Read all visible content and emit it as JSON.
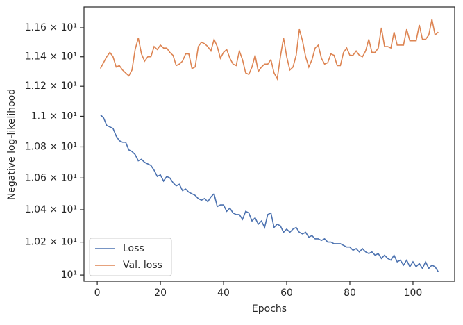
{
  "chart_data": {
    "type": "line",
    "xlabel": "Epochs",
    "ylabel": "Negative log-likelihood",
    "x": [
      1,
      2,
      3,
      4,
      5,
      6,
      7,
      8,
      9,
      10,
      11,
      12,
      13,
      14,
      15,
      16,
      17,
      18,
      19,
      20,
      21,
      22,
      23,
      24,
      25,
      26,
      27,
      28,
      29,
      30,
      31,
      32,
      33,
      34,
      35,
      36,
      37,
      38,
      39,
      40,
      41,
      42,
      43,
      44,
      45,
      46,
      47,
      48,
      49,
      50,
      51,
      52,
      53,
      54,
      55,
      56,
      57,
      58,
      59,
      60,
      61,
      62,
      63,
      64,
      65,
      66,
      67,
      68,
      69,
      70,
      71,
      72,
      73,
      74,
      75,
      76,
      77,
      78,
      79,
      80,
      81,
      82,
      83,
      84,
      85,
      86,
      87,
      88,
      89,
      90,
      91,
      92,
      93,
      94,
      95,
      96,
      97,
      98,
      99,
      100,
      101,
      102,
      103,
      104,
      105,
      106,
      107,
      108
    ],
    "series": [
      {
        "name": "Loss",
        "color": "#4c72b0",
        "values": [
          11.01,
          10.99,
          10.94,
          10.93,
          10.92,
          10.87,
          10.84,
          10.83,
          10.83,
          10.78,
          10.77,
          10.75,
          10.71,
          10.72,
          10.7,
          10.69,
          10.68,
          10.65,
          10.61,
          10.62,
          10.58,
          10.61,
          10.6,
          10.57,
          10.55,
          10.56,
          10.52,
          10.53,
          10.51,
          10.5,
          10.49,
          10.47,
          10.46,
          10.47,
          10.45,
          10.48,
          10.5,
          10.42,
          10.43,
          10.43,
          10.39,
          10.41,
          10.38,
          10.37,
          10.37,
          10.34,
          10.39,
          10.38,
          10.33,
          10.35,
          10.31,
          10.33,
          10.29,
          10.37,
          10.38,
          10.29,
          10.31,
          10.3,
          10.26,
          10.28,
          10.26,
          10.28,
          10.29,
          10.26,
          10.25,
          10.26,
          10.23,
          10.24,
          10.22,
          10.22,
          10.21,
          10.22,
          10.2,
          10.2,
          10.19,
          10.19,
          10.19,
          10.18,
          10.17,
          10.17,
          10.15,
          10.16,
          10.14,
          10.16,
          10.14,
          10.13,
          10.14,
          10.12,
          10.13,
          10.1,
          10.12,
          10.1,
          10.09,
          10.12,
          10.08,
          10.09,
          10.06,
          10.09,
          10.05,
          10.08,
          10.05,
          10.07,
          10.04,
          10.08,
          10.04,
          10.06,
          10.05,
          10.02
        ]
      },
      {
        "name": "Val. loss",
        "color": "#dd8452",
        "values": [
          11.32,
          11.36,
          11.4,
          11.43,
          11.4,
          11.33,
          11.34,
          11.31,
          11.29,
          11.27,
          11.31,
          11.45,
          11.53,
          11.42,
          11.37,
          11.4,
          11.4,
          11.47,
          11.45,
          11.48,
          11.46,
          11.46,
          11.43,
          11.41,
          11.34,
          11.35,
          11.37,
          11.42,
          11.42,
          11.32,
          11.33,
          11.47,
          11.5,
          11.49,
          11.47,
          11.44,
          11.52,
          11.47,
          11.39,
          11.43,
          11.45,
          11.39,
          11.35,
          11.34,
          11.44,
          11.38,
          11.29,
          11.28,
          11.33,
          11.41,
          11.3,
          11.33,
          11.35,
          11.35,
          11.38,
          11.29,
          11.25,
          11.4,
          11.53,
          11.4,
          11.31,
          11.33,
          11.41,
          11.59,
          11.51,
          11.4,
          11.33,
          11.38,
          11.46,
          11.48,
          11.39,
          11.35,
          11.36,
          11.42,
          11.41,
          11.34,
          11.34,
          11.43,
          11.46,
          11.41,
          11.41,
          11.44,
          11.41,
          11.4,
          11.44,
          11.52,
          11.43,
          11.43,
          11.46,
          11.6,
          11.47,
          11.47,
          11.46,
          11.57,
          11.48,
          11.48,
          11.48,
          11.59,
          11.51,
          11.51,
          11.51,
          11.62,
          11.52,
          11.52,
          11.55,
          11.66,
          11.55,
          11.57
        ]
      }
    ],
    "xlim": [
      -4.2,
      113.2
    ],
    "xticks": [
      0,
      20,
      40,
      60,
      80,
      100
    ],
    "ylim": [
      9.963,
      11.746
    ],
    "ylog": true,
    "yticks": [
      {
        "value": 10,
        "label": "10¹"
      },
      {
        "value": 10.2,
        "label": "1.02 × 10¹"
      },
      {
        "value": 10.4,
        "label": "1.04 × 10¹"
      },
      {
        "value": 10.6,
        "label": "1.06 × 10¹"
      },
      {
        "value": 10.8,
        "label": "1.08 × 10¹"
      },
      {
        "value": 11,
        "label": "1.1 × 10¹"
      },
      {
        "value": 11.2,
        "label": "1.12 × 10¹"
      },
      {
        "value": 11.4,
        "label": "1.14 × 10¹"
      },
      {
        "value": 11.6,
        "label": "1.16 × 10¹"
      }
    ],
    "grid": false,
    "legend": "lower left"
  }
}
